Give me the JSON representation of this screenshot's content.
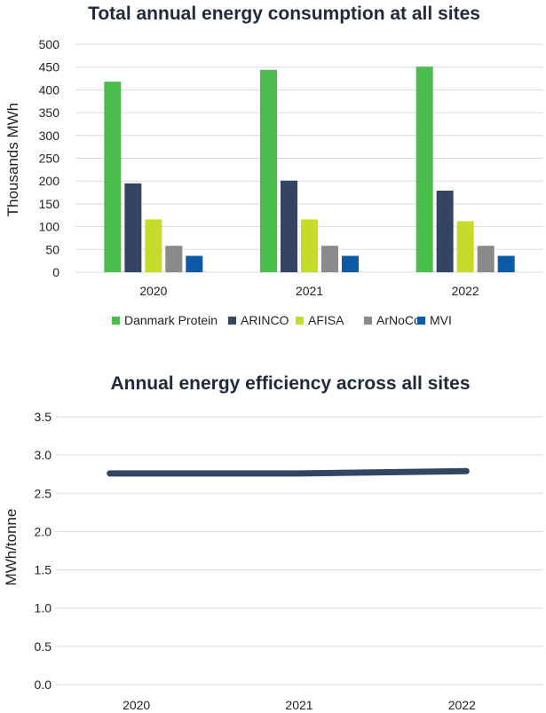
{
  "chart_data": [
    {
      "type": "bar",
      "title": "Total annual energy consumption at all sites",
      "ylabel": "Thousands MWh",
      "xlabel": "",
      "ylim": [
        0,
        500
      ],
      "yticks": [
        "0",
        "50",
        "100",
        "150",
        "200",
        "250",
        "300",
        "350",
        "400",
        "450",
        "500"
      ],
      "categories": [
        "2020",
        "2021",
        "2022"
      ],
      "grid": true,
      "legend": "bottom",
      "series": [
        {
          "name": "Danmark Protein",
          "color": "#4cbc4c",
          "values": [
            418,
            444,
            451
          ]
        },
        {
          "name": "ARINCO",
          "color": "#344563",
          "values": [
            195,
            201,
            179
          ]
        },
        {
          "name": "AFISA",
          "color": "#c7dc2a",
          "values": [
            116,
            116,
            112
          ]
        },
        {
          "name": "ArNoCo",
          "color": "#8a8a8a",
          "values": [
            58,
            58,
            58
          ]
        },
        {
          "name": "MVI",
          "color": "#0a5aa8",
          "values": [
            36,
            36,
            36
          ]
        }
      ]
    },
    {
      "type": "line",
      "title": "Annual energy efficiency across all sites",
      "ylabel": "MWh/tonne",
      "xlabel": "",
      "ylim": [
        0,
        3.5
      ],
      "yticks": [
        "0.0",
        "0.5",
        "1.0",
        "1.5",
        "2.0",
        "2.5",
        "3.0",
        "3.5"
      ],
      "x": [
        "2020",
        "2021",
        "2022"
      ],
      "grid": true,
      "series": [
        {
          "color": "#344563",
          "values": [
            2.76,
            2.76,
            2.79
          ]
        }
      ]
    }
  ]
}
